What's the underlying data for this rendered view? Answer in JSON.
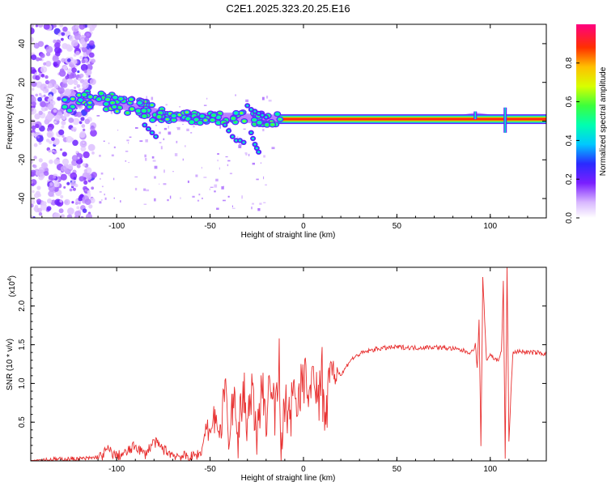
{
  "title": "C2E1.2025.323.20.25.E16",
  "chart_data": [
    {
      "type": "heatmap",
      "xlabel": "Height of straight line (km)",
      "ylabel": "Frequency (Hz)",
      "xlim": [
        -146,
        130
      ],
      "ylim": [
        -50,
        50
      ],
      "xticks": [
        -100,
        -50,
        0,
        50,
        100
      ],
      "yticks": [
        -40,
        -20,
        0,
        20,
        40
      ],
      "ridge": {
        "x": [
          -125,
          -115,
          -105,
          -95,
          -85,
          -75,
          -65,
          -55,
          -45,
          -35,
          -25,
          -15,
          -5,
          0,
          10,
          20,
          40,
          60,
          80,
          92,
          100,
          108,
          115,
          130
        ],
        "y": [
          9,
          11,
          10,
          8,
          6,
          3,
          2,
          2,
          2,
          2,
          1,
          1,
          1,
          1,
          1,
          1,
          1,
          1,
          1,
          3,
          2,
          1,
          1,
          1
        ]
      },
      "colorbar": {
        "label": "Normalized spectral amplitude",
        "range": [
          0,
          1
        ],
        "ticks": [
          0.0,
          0.2,
          0.4,
          0.6,
          0.8
        ]
      }
    },
    {
      "type": "line",
      "xlabel": "Height of straight line (km)",
      "ylabel": "SNR (10 * v/v)",
      "exponent_label": "(x10",
      "exponent_power": "4",
      "exponent_close": ")",
      "xlim": [
        -146,
        130
      ],
      "ylim": [
        0,
        2.5
      ],
      "xticks": [
        -100,
        -50,
        0,
        50,
        100
      ],
      "yticks": [
        0.5,
        1.0,
        1.5,
        2.0
      ],
      "color": "#e83030",
      "series": [
        {
          "name": "SNR",
          "x": [
            -146,
            -130,
            -115,
            -108,
            -105,
            -100,
            -95,
            -90,
            -85,
            -80,
            -75,
            -70,
            -65,
            -60,
            -55,
            -52,
            -50,
            -47,
            -45,
            -42,
            -40,
            -37,
            -35,
            -32,
            -30,
            -28,
            -25,
            -22,
            -20,
            -18,
            -15,
            -13,
            -12,
            -10,
            -8,
            -5,
            -3,
            0,
            3,
            5,
            8,
            10,
            12,
            14,
            16,
            18,
            20,
            25,
            30,
            35,
            40,
            50,
            60,
            70,
            80,
            90,
            92,
            93,
            94,
            95,
            96,
            98,
            100,
            102,
            104,
            106,
            107,
            108,
            109,
            110,
            112,
            115,
            120,
            125,
            130
          ],
          "y": [
            0.01,
            0.02,
            0.03,
            0.06,
            0.15,
            0.06,
            0.1,
            0.2,
            0.08,
            0.25,
            0.15,
            0.08,
            0.06,
            0.05,
            0.1,
            0.5,
            0.3,
            0.8,
            0.2,
            1.0,
            0.3,
            0.9,
            0.25,
            1.2,
            0.35,
            1.1,
            0.2,
            1.3,
            0.4,
            1.1,
            0.6,
            1.4,
            0.1,
            0.9,
            0.6,
            1.0,
            0.8,
            1.2,
            0.9,
            1.1,
            0.85,
            1.3,
            0.5,
            1.55,
            1.05,
            1.2,
            1.1,
            1.3,
            1.38,
            1.42,
            1.45,
            1.47,
            1.46,
            1.47,
            1.45,
            1.4,
            1.5,
            1.2,
            1.8,
            0.2,
            2.35,
            1.3,
            1.38,
            1.32,
            1.3,
            1.4,
            2.3,
            0.05,
            2.5,
            0.25,
            1.38,
            1.42,
            1.4,
            1.4,
            1.38
          ]
        }
      ]
    }
  ]
}
